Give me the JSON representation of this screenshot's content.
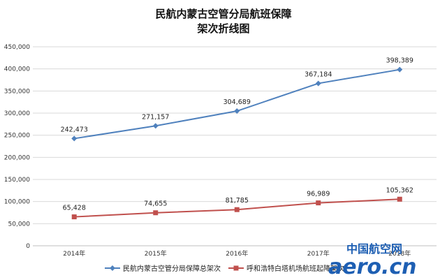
{
  "chart_data": {
    "type": "line",
    "title": [
      "民航内蒙古空管分局航班保障",
      "架次折线图"
    ],
    "categories": [
      "2014年",
      "2015年",
      "2016年",
      "2017年",
      "2018年"
    ],
    "ylim": [
      0,
      450000
    ],
    "yticks": [
      0,
      50000,
      100000,
      150000,
      200000,
      250000,
      300000,
      350000,
      400000,
      450000
    ],
    "grid": true,
    "legend_position": "bottom",
    "series": [
      {
        "name": "民航内蒙古空管分局保障总架次",
        "values": [
          242473,
          271157,
          304689,
          367184,
          398389
        ],
        "labels": [
          "242,473",
          "271,157",
          "304,689",
          "367,184",
          "398,389"
        ],
        "color": "#4f81bd",
        "marker": "diamond"
      },
      {
        "name": "呼和浩特白塔机场航班起降架次",
        "values": [
          65428,
          74655,
          81785,
          96989,
          105362
        ],
        "labels": [
          "65,428",
          "74,655",
          "81,785",
          "96,989",
          "105,362"
        ],
        "color": "#c0504d",
        "marker": "square"
      }
    ]
  },
  "watermark": {
    "chinese": "中国航空网",
    "english": "aero.cn"
  }
}
